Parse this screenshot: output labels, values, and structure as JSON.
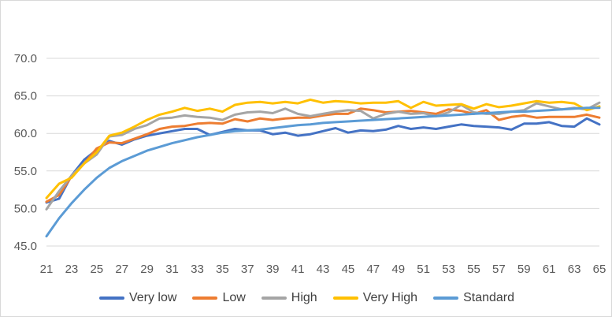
{
  "chart_data": {
    "type": "line",
    "x": [
      21,
      22,
      23,
      24,
      25,
      26,
      27,
      28,
      29,
      30,
      31,
      32,
      33,
      34,
      35,
      36,
      37,
      38,
      39,
      40,
      41,
      42,
      43,
      44,
      45,
      46,
      47,
      48,
      49,
      50,
      51,
      52,
      53,
      54,
      55,
      56,
      57,
      58,
      59,
      60,
      61,
      62,
      63,
      64,
      65
    ],
    "x_tick_labels": [
      "21",
      "23",
      "25",
      "27",
      "29",
      "31",
      "33",
      "35",
      "37",
      "39",
      "41",
      "43",
      "45",
      "47",
      "49",
      "51",
      "53",
      "55",
      "57",
      "59",
      "61",
      "63",
      "65"
    ],
    "ylim": [
      45.0,
      70.0
    ],
    "y_tick_labels": [
      "45.0",
      "50.0",
      "55.0",
      "60.0",
      "65.0",
      "70.0"
    ],
    "y_ticks": [
      45,
      50,
      55,
      60,
      65,
      70
    ],
    "grid": "horizontal",
    "legend_position": "bottom",
    "series": [
      {
        "name": "Very low",
        "color": "#4472C4",
        "values": [
          50.8,
          51.3,
          54.4,
          56.5,
          57.8,
          59.0,
          58.5,
          59.2,
          59.7,
          60.0,
          60.3,
          60.6,
          60.6,
          59.8,
          60.2,
          60.6,
          60.4,
          60.4,
          59.9,
          60.1,
          59.7,
          59.9,
          60.3,
          60.7,
          60.1,
          60.4,
          60.3,
          60.5,
          61.0,
          60.6,
          60.8,
          60.6,
          60.9,
          61.2,
          61.0,
          60.9,
          60.8,
          60.5,
          61.3,
          61.3,
          61.5,
          61.0,
          60.9,
          62.0,
          61.2
        ]
      },
      {
        "name": "Low",
        "color": "#ED7D31",
        "values": [
          50.9,
          51.8,
          54.3,
          56.0,
          58.0,
          58.8,
          58.7,
          59.3,
          59.9,
          60.6,
          60.9,
          61.0,
          61.3,
          61.4,
          61.3,
          61.9,
          61.6,
          62.0,
          61.8,
          62.0,
          62.1,
          62.1,
          62.4,
          62.6,
          62.6,
          63.3,
          63.1,
          62.8,
          62.9,
          63.0,
          62.8,
          62.6,
          63.2,
          63.0,
          62.6,
          63.1,
          61.8,
          62.2,
          62.4,
          62.1,
          62.2,
          62.2,
          62.2,
          62.5,
          62.1
        ]
      },
      {
        "name": "High",
        "color": "#A5A5A5",
        "values": [
          49.9,
          52.3,
          54.4,
          56.0,
          57.2,
          59.6,
          59.8,
          60.6,
          61.1,
          62.0,
          62.1,
          62.4,
          62.2,
          62.1,
          61.8,
          62.5,
          62.8,
          62.9,
          62.7,
          63.3,
          62.6,
          62.3,
          62.6,
          62.9,
          63.1,
          63.0,
          62.0,
          62.6,
          62.9,
          62.6,
          62.7,
          62.3,
          62.8,
          63.8,
          62.8,
          62.6,
          62.6,
          62.9,
          63.1,
          64.0,
          63.6,
          63.2,
          63.4,
          63.2,
          64.1
        ]
      },
      {
        "name": "Very High",
        "color": "#FFC000",
        "values": [
          51.4,
          53.3,
          54.1,
          56.0,
          57.5,
          59.7,
          60.1,
          60.9,
          61.8,
          62.5,
          62.9,
          63.4,
          63.0,
          63.3,
          62.9,
          63.8,
          64.1,
          64.2,
          64.0,
          64.2,
          64.0,
          64.5,
          64.1,
          64.3,
          64.2,
          64.0,
          64.1,
          64.1,
          64.3,
          63.4,
          64.2,
          63.7,
          63.8,
          63.9,
          63.3,
          63.9,
          63.5,
          63.7,
          64.0,
          64.3,
          64.1,
          64.2,
          64.0,
          63.1,
          63.6
        ]
      },
      {
        "name": "Standard",
        "color": "#5B9BD5",
        "values": [
          46.3,
          48.7,
          50.7,
          52.5,
          54.1,
          55.4,
          56.3,
          57.0,
          57.7,
          58.2,
          58.7,
          59.1,
          59.5,
          59.8,
          60.1,
          60.3,
          60.4,
          60.5,
          60.7,
          60.9,
          61.1,
          61.2,
          61.4,
          61.5,
          61.6,
          61.7,
          61.8,
          61.9,
          62.0,
          62.1,
          62.2,
          62.3,
          62.4,
          62.5,
          62.6,
          62.7,
          62.8,
          62.9,
          62.9,
          63.0,
          63.1,
          63.2,
          63.3,
          63.4,
          63.4
        ]
      }
    ]
  }
}
